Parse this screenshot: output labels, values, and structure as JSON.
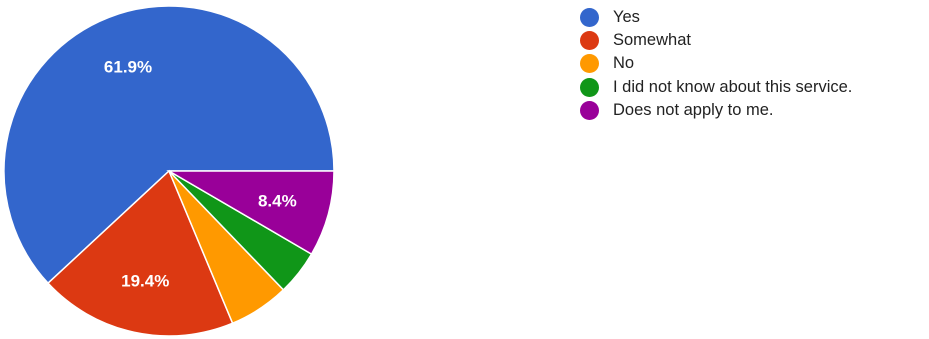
{
  "chart_data": {
    "type": "pie",
    "slices": [
      {
        "label": "Yes",
        "value": 61.9,
        "color": "#3366cc",
        "data_label": "61.9%"
      },
      {
        "label": "Somewhat",
        "value": 19.4,
        "color": "#dc3912",
        "data_label": "19.4%"
      },
      {
        "label": "No",
        "value": 5.9,
        "color": "#ff9900",
        "data_label": ""
      },
      {
        "label": "I did not know about this service.",
        "value": 4.4,
        "color": "#109618",
        "data_label": ""
      },
      {
        "label": "Does not apply to me.",
        "value": 8.4,
        "color": "#990099",
        "data_label": "8.4%"
      }
    ],
    "legend_position": "right"
  }
}
